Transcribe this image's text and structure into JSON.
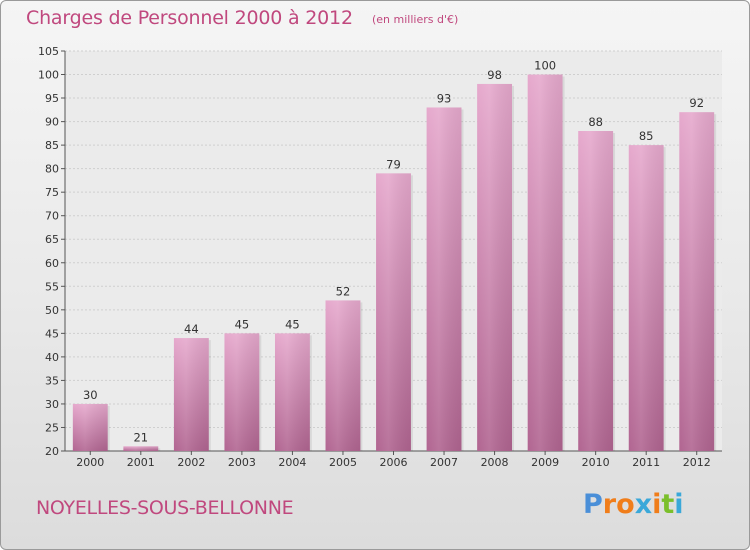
{
  "header": {
    "title": "Charges de Personnel 2000 à 2012",
    "subtitle": "(en milliers d'€)"
  },
  "footer": {
    "commune": "NOYELLES-SOUS-BELLONNE",
    "logo_letters": [
      "P",
      "r",
      "o",
      "x",
      "i",
      "t",
      "i"
    ]
  },
  "colors": {
    "accent": "#c0487e",
    "bar_light": "#e6a9cd",
    "bar_dark": "#b86b98",
    "logo": [
      "#4a8fd8",
      "#f07d1a",
      "#f07d1a",
      "#3aa8d9",
      "#f07d1a",
      "#7bbf2b",
      "#3aa8d9"
    ]
  },
  "chart_data": {
    "type": "bar",
    "categories": [
      "2000",
      "2001",
      "2002",
      "2003",
      "2004",
      "2005",
      "2006",
      "2007",
      "2008",
      "2009",
      "2010",
      "2011",
      "2012"
    ],
    "values": [
      30,
      21,
      44,
      45,
      45,
      52,
      79,
      93,
      98,
      100,
      88,
      85,
      92
    ],
    "title": "Charges de Personnel 2000 à 2012",
    "ylabel": "",
    "xlabel": "",
    "ylim": [
      20,
      105
    ],
    "yticks": [
      20,
      25,
      30,
      35,
      40,
      45,
      50,
      55,
      60,
      65,
      70,
      75,
      80,
      85,
      90,
      95,
      100,
      105
    ],
    "grid": true
  }
}
